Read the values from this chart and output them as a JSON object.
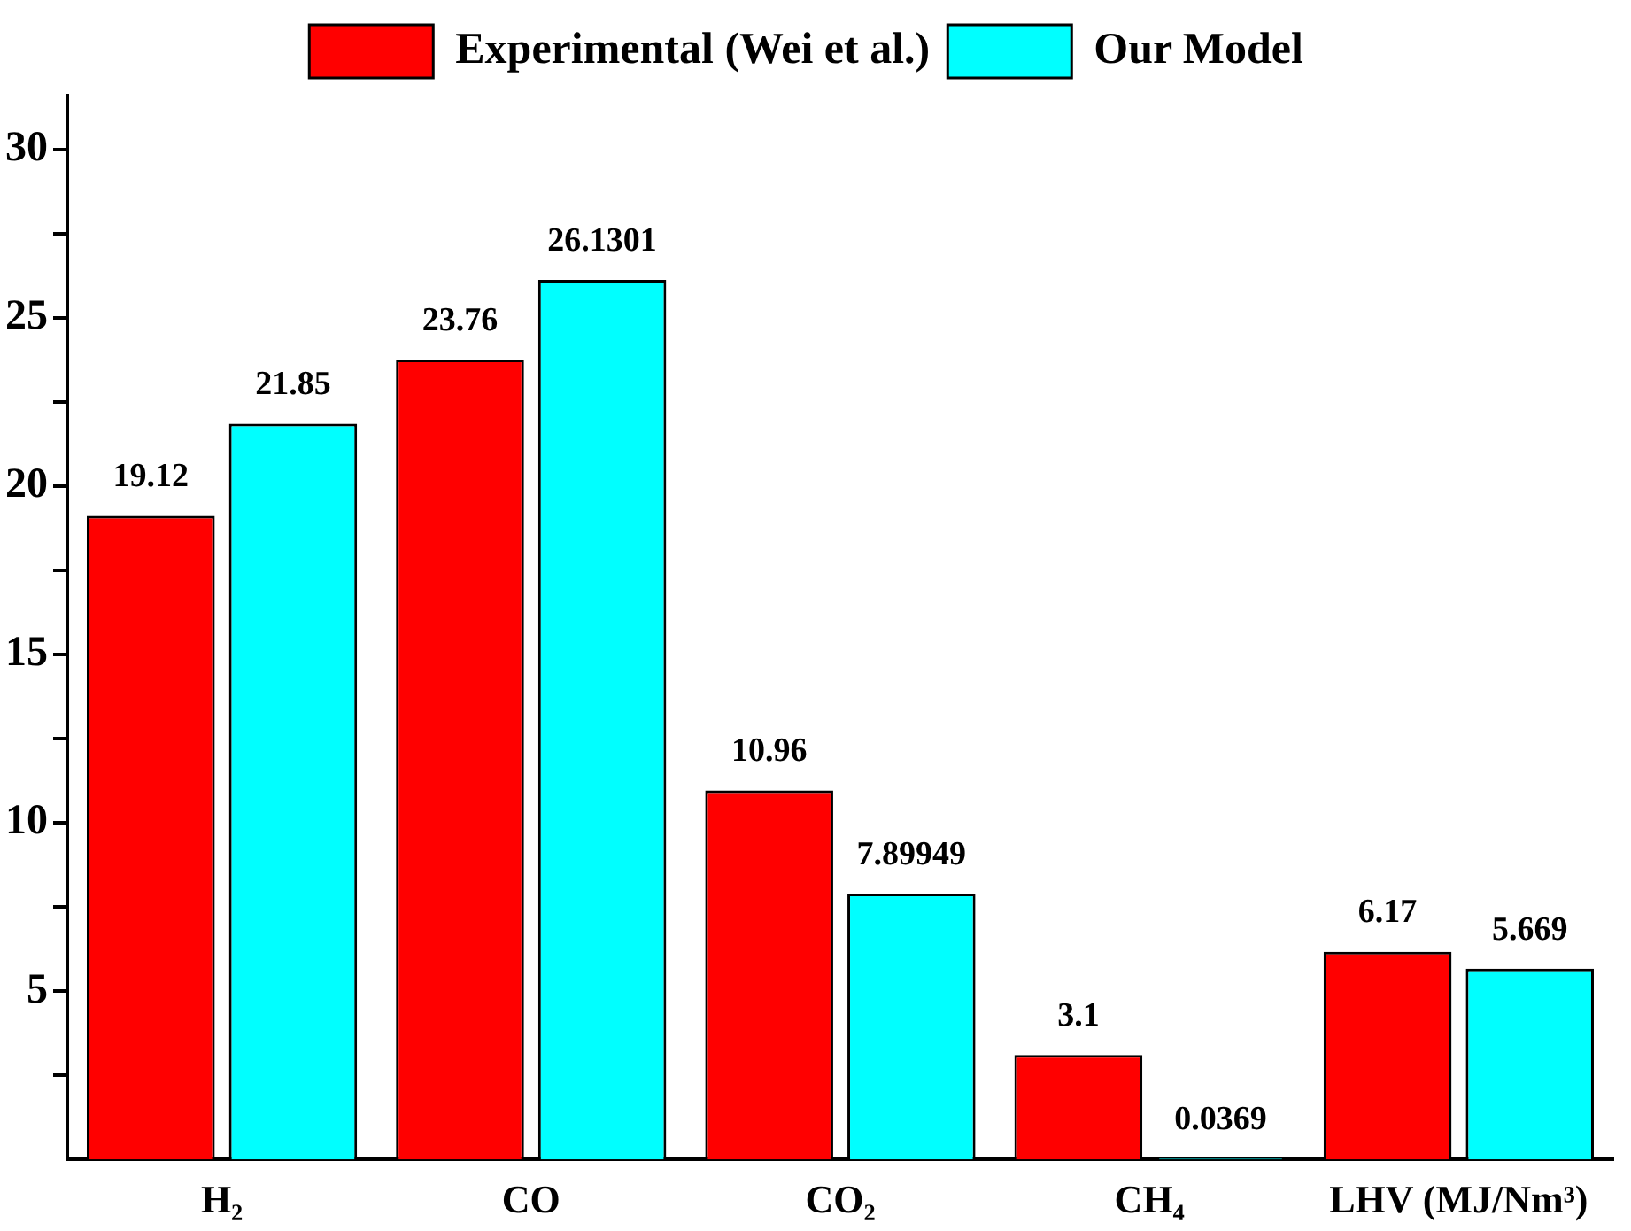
{
  "chart_data": {
    "type": "bar",
    "categories": [
      "H₂",
      "CO",
      "CO₂",
      "CH₄",
      "LHV (MJ/Nm³)"
    ],
    "series": [
      {
        "name": "Experimental (Wei et al.)",
        "color": "#ff0000",
        "values": [
          19.12,
          23.76,
          10.96,
          3.1,
          6.17
        ]
      },
      {
        "name": "Our Model",
        "color": "#00ffff",
        "values": [
          21.85,
          26.1301,
          7.89949,
          0.0369,
          5.669
        ]
      }
    ],
    "ylim": [
      0,
      31.6
    ],
    "yticks": [
      {
        "value": 2.5,
        "label": null
      },
      5,
      {
        "value": 7.5,
        "label": null
      },
      10,
      {
        "value": 12.5,
        "label": null
      },
      15,
      {
        "value": 17.5,
        "label": null
      },
      20,
      {
        "value": 22.5,
        "label": null
      },
      25,
      {
        "value": 27.5,
        "label": null
      },
      30
    ],
    "data_labels": true,
    "grid": false,
    "legend": "top"
  }
}
